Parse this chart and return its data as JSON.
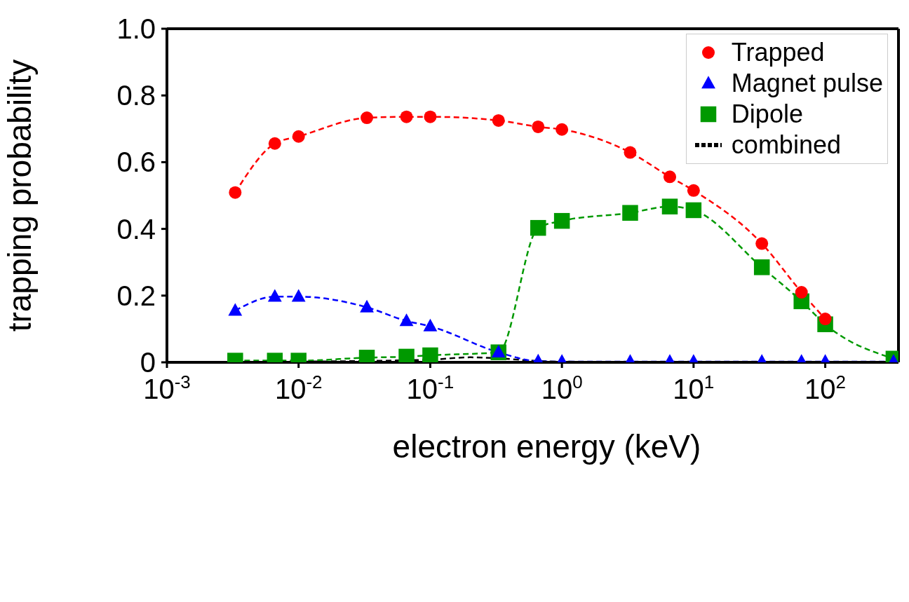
{
  "chart_data": {
    "type": "line",
    "xlabel": "electron energy (keV)",
    "ylabel": "trapping probability",
    "log": "x",
    "x": [
      0.0033,
      0.0066,
      0.01,
      0.033,
      0.066,
      0.1,
      0.33,
      0.66,
      1,
      3.3,
      6.6,
      10,
      33,
      66,
      100,
      330
    ],
    "series": [
      {
        "name": "Trapped",
        "color": "#ff0000",
        "marker": "circle",
        "values": [
          0.509,
          0.656,
          0.677,
          0.733,
          0.736,
          0.736,
          0.725,
          0.706,
          0.698,
          0.629,
          0.556,
          0.515,
          0.356,
          0.21,
          0.13,
          null
        ]
      },
      {
        "name": "Magnet pulse",
        "color": "#0000ff",
        "marker": "triangle",
        "values": [
          0.155,
          0.197,
          0.197,
          0.165,
          0.124,
          0.108,
          0.03,
          0.003,
          0.002,
          0.002,
          0.002,
          0.002,
          0.002,
          0.002,
          0.002,
          0.002
        ]
      },
      {
        "name": "Dipole",
        "color": "#009900",
        "marker": "square",
        "values": [
          0.005,
          0.005,
          0.005,
          0.014,
          0.017,
          0.021,
          0.03,
          0.403,
          0.424,
          0.448,
          0.467,
          0.456,
          0.285,
          0.183,
          0.114,
          0.011
        ]
      },
      {
        "name": "combined",
        "color": "#000000",
        "marker": "none",
        "x": [
          0.001,
          0.01,
          0.1,
          0.2,
          0.33,
          0.66,
          1,
          10,
          330
        ],
        "values": [
          0,
          0.002,
          0.008,
          0.015,
          0.012,
          0.004,
          0.002,
          0.001,
          0
        ]
      }
    ],
    "line_style": "dashed",
    "xlim": [
      0.001,
      360
    ],
    "ylim": [
      0,
      1
    ],
    "xticks": [
      {
        "value": 0.001,
        "label": "10$^{-3}$"
      },
      {
        "value": 0.01,
        "label": "10$^{-2}$"
      },
      {
        "value": 0.1,
        "label": "10$^{-1}$"
      },
      {
        "value": 1,
        "label": "10$^{0}$"
      },
      {
        "value": 10,
        "label": "10$^{1}$"
      },
      {
        "value": 100,
        "label": "10$^{2}$"
      }
    ],
    "yticks": [
      0,
      0.2,
      0.4,
      0.6,
      0.8,
      {
        "value": 1,
        "label": "1.0"
      }
    ],
    "legend": "top right"
  }
}
